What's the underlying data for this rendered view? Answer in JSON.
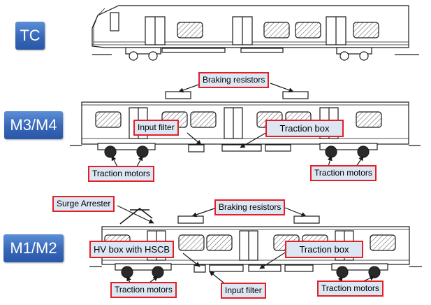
{
  "car_types": {
    "tc": "TC",
    "m34": "M3/M4",
    "m12": "M1/M2"
  },
  "callouts": {
    "m34_braking_resistors": "Braking resistors",
    "m34_input_filter": "Input filter",
    "m34_traction_box": "Traction box",
    "m34_traction_motors_left": "Traction motors",
    "m34_traction_motors_right": "Traction motors",
    "m12_surge_arrester": "Surge Arrester",
    "m12_braking_resistors": "Braking resistors",
    "m12_hv_box": "HV box with HSCB",
    "m12_traction_box": "Traction box",
    "m12_traction_motors_left": "Traction motors",
    "m12_input_filter": "Input filter",
    "m12_traction_motors_right": "Traction motors"
  },
  "colors": {
    "tag_blue": "#3766b8",
    "callout_border": "#e32026",
    "callout_fill": "#dde6f3",
    "line": "#1a1a1a"
  }
}
